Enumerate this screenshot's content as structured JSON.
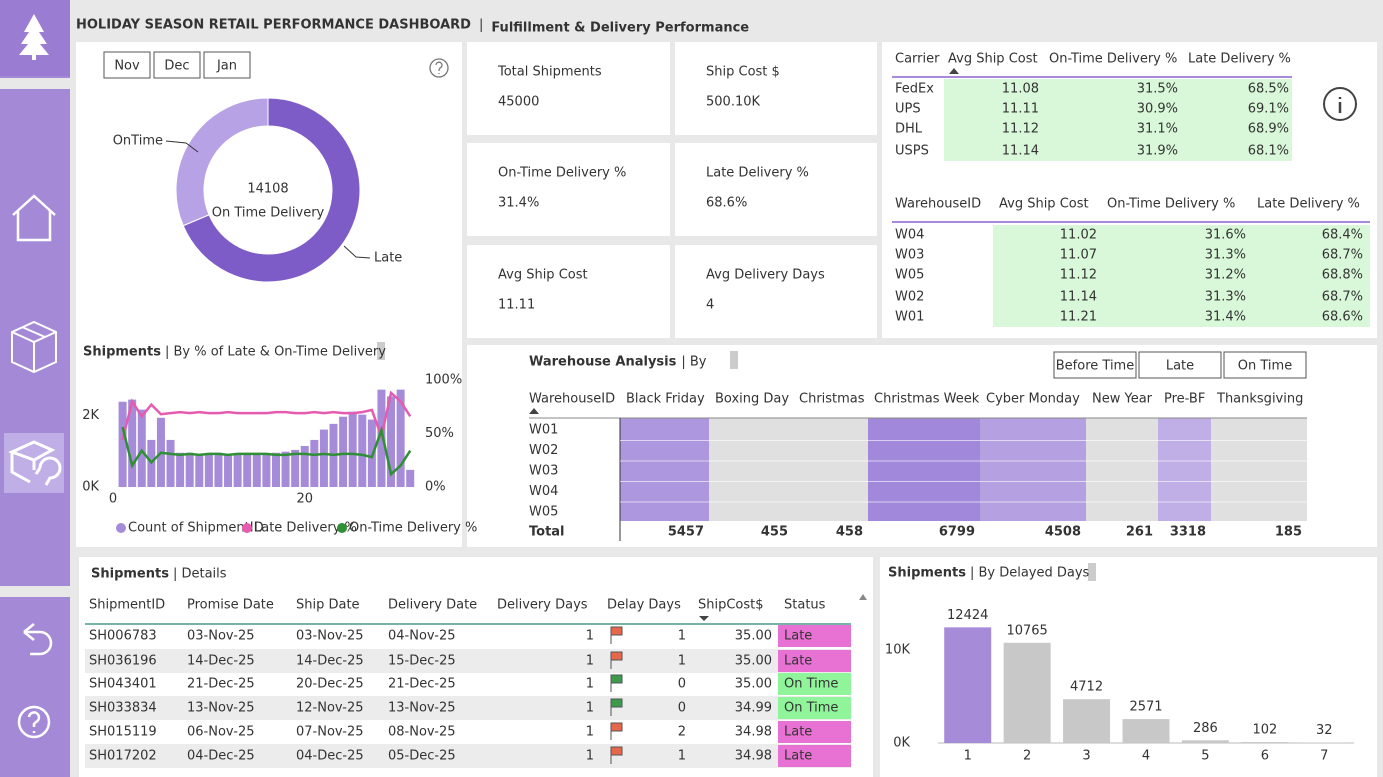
{
  "header": {
    "title": "HOLIDAY SEASON RETAIL PERFORMANCE DASHBOARD",
    "separator": "|",
    "subtitle": "Fulfillment & Delivery Performance"
  },
  "filters": [
    "Nov",
    "Dec",
    "Jan"
  ],
  "kpis": [
    {
      "label": "Total Shipments",
      "value": "45000"
    },
    {
      "label": "Ship Cost $",
      "value": "500.10K"
    },
    {
      "label": "On-Time Delivery %",
      "value": "31.4%"
    },
    {
      "label": "Late Delivery %",
      "value": "68.6%"
    },
    {
      "label": "Avg Ship Cost",
      "value": "11.11"
    },
    {
      "label": "Avg Delivery Days",
      "value": "4"
    }
  ],
  "carrier_table": {
    "columns": [
      "Carrier",
      "Avg Ship Cost",
      "On-Time Delivery %",
      "Late Delivery %"
    ],
    "rows": [
      [
        "FedEx",
        "11.08",
        "31.5%",
        "68.5%"
      ],
      [
        "UPS",
        "11.11",
        "30.9%",
        "69.1%"
      ],
      [
        "DHL",
        "11.12",
        "31.1%",
        "68.9%"
      ],
      [
        "USPS",
        "11.14",
        "31.9%",
        "68.1%"
      ]
    ]
  },
  "warehouse_table": {
    "columns": [
      "WarehouseID",
      "Avg Ship Cost",
      "On-Time Delivery %",
      "Late Delivery %"
    ],
    "rows": [
      [
        "W04",
        "11.02",
        "31.6%",
        "68.4%"
      ],
      [
        "W03",
        "11.07",
        "31.3%",
        "68.7%"
      ],
      [
        "W05",
        "11.12",
        "31.2%",
        "68.8%"
      ],
      [
        "W02",
        "11.14",
        "31.3%",
        "68.7%"
      ],
      [
        "W01",
        "11.21",
        "31.4%",
        "68.6%"
      ]
    ]
  },
  "warehouse_matrix": {
    "title": "Warehouse Analysis",
    "subtitle": "| By",
    "buttons": [
      "Before Time",
      "Late",
      "On Time"
    ],
    "row_header": "WarehouseID",
    "columns": [
      "Black Friday",
      "Boxing Day",
      "Christmas",
      "Christmas Week",
      "Cyber Monday",
      "New Year",
      "Pre-BF",
      "Thanksgiving"
    ],
    "rows": [
      "W01",
      "W02",
      "W03",
      "W04",
      "W05"
    ],
    "total_label": "Total",
    "totals": [
      5457,
      455,
      458,
      6799,
      4508,
      261,
      3318,
      185
    ],
    "color": "#9c82d8",
    "low_color": "#e0e0e0"
  },
  "details_table": {
    "title": "Shipments",
    "subtitle": "| Details",
    "columns": [
      "ShipmentID",
      "Promise Date",
      "Ship Date",
      "Delivery Date",
      "Delivery Days",
      "Delay Days",
      "ShipCost$",
      "Status"
    ],
    "rows": [
      [
        "SH006783",
        "03-Nov-25",
        "03-Nov-25",
        "04-Nov-25",
        "1",
        "1",
        "35.00",
        "Late"
      ],
      [
        "SH036196",
        "14-Dec-25",
        "14-Dec-25",
        "15-Dec-25",
        "1",
        "1",
        "35.00",
        "Late"
      ],
      [
        "SH043401",
        "21-Dec-25",
        "20-Dec-25",
        "21-Dec-25",
        "1",
        "0",
        "35.00",
        "On Time"
      ],
      [
        "SH033834",
        "13-Nov-25",
        "12-Nov-25",
        "13-Nov-25",
        "1",
        "0",
        "34.99",
        "On Time"
      ],
      [
        "SH015119",
        "06-Nov-25",
        "07-Nov-25",
        "08-Nov-25",
        "1",
        "2",
        "34.98",
        "Late"
      ],
      [
        "SH017202",
        "04-Dec-25",
        "04-Dec-25",
        "05-Dec-25",
        "1",
        "1",
        "34.98",
        "Late"
      ]
    ],
    "flag_colors": [
      "#e8664a",
      "#e8664a",
      "#3c9a4c",
      "#3c9a4c",
      "#e8664a",
      "#e8664a"
    ],
    "status_colors": [
      "#e872d4",
      "#e872d4",
      "#90f59a",
      "#90f59a",
      "#e872d4",
      "#e872d4"
    ]
  },
  "chart_data": [
    {
      "type": "pie",
      "donut": true,
      "categories": [
        "OnTime",
        "Late"
      ],
      "values": [
        14108,
        30892
      ],
      "colors": [
        "#b7a2e6",
        "#7e5cc8"
      ],
      "center_label": "On Time Delivery"
    },
    {
      "type": "combo",
      "title": "Shipments",
      "subtitle": "| By % of Late & On-Time Delivery",
      "x": [
        1,
        2,
        3,
        4,
        5,
        6,
        7,
        8,
        9,
        10,
        11,
        12,
        13,
        14,
        15,
        16,
        17,
        18,
        19,
        20,
        21,
        22,
        23,
        24,
        25,
        26,
        27,
        28,
        29,
        30,
        31
      ],
      "xlim": [
        0,
        31.5
      ],
      "xticks": [
        0,
        20
      ],
      "ylim": [
        0,
        3000
      ],
      "yticks": [
        {
          "value": 0,
          "label": "0K"
        },
        {
          "value": 2000,
          "label": "2K"
        }
      ],
      "y2lim": [
        0,
        100
      ],
      "y2ticks": [
        {
          "value": 0,
          "label": "0%"
        },
        {
          "value": 50,
          "label": "50%"
        },
        {
          "value": 100,
          "label": "100%"
        }
      ],
      "legend": "bottom",
      "series": [
        {
          "name": "Count of ShipmentID",
          "mark": "bar",
          "color": "#a58bd8",
          "values": [
            2390,
            2450,
            2170,
            1320,
            1940,
            1320,
            960,
            960,
            900,
            900,
            960,
            900,
            900,
            900,
            900,
            900,
            960,
            990,
            1040,
            1150,
            1320,
            1610,
            1770,
            1970,
            2110,
            2030,
            1890,
            2730,
            2540,
            2730,
            480
          ]
        },
        {
          "name": "Late Delivery %",
          "mark": "line",
          "axis": "y2",
          "color": "#e55bb0",
          "values": [
            44,
            80,
            66,
            77,
            68,
            69,
            70,
            69,
            70,
            69,
            69,
            70,
            69,
            69,
            69,
            69,
            70,
            70,
            69,
            69,
            70,
            69,
            70,
            69,
            69,
            70,
            72,
            47,
            88,
            80,
            66
          ]
        },
        {
          "name": "On-Time Delivery %",
          "mark": "line",
          "axis": "y2",
          "color": "#2f8f35",
          "values": [
            56,
            20,
            34,
            23,
            32,
            31,
            30,
            31,
            30,
            31,
            31,
            30,
            31,
            31,
            31,
            31,
            30,
            30,
            31,
            31,
            30,
            31,
            30,
            31,
            31,
            30,
            28,
            53,
            12,
            20,
            34
          ]
        }
      ]
    },
    {
      "type": "bar",
      "title": "Shipments",
      "subtitle": "| By Delayed Days",
      "categories": [
        1,
        2,
        3,
        4,
        5,
        6,
        7
      ],
      "values": [
        12424,
        10765,
        4712,
        2571,
        286,
        102,
        32
      ],
      "colors": [
        "#a58bd8",
        "#c8c8c8",
        "#c8c8c8",
        "#c8c8c8",
        "#c8c8c8",
        "#c8c8c8",
        "#c8c8c8"
      ],
      "ylim": [
        0,
        13000
      ],
      "yticks": [
        {
          "value": 0,
          "label": "0K"
        },
        {
          "value": 10000,
          "label": "10K"
        }
      ]
    }
  ]
}
